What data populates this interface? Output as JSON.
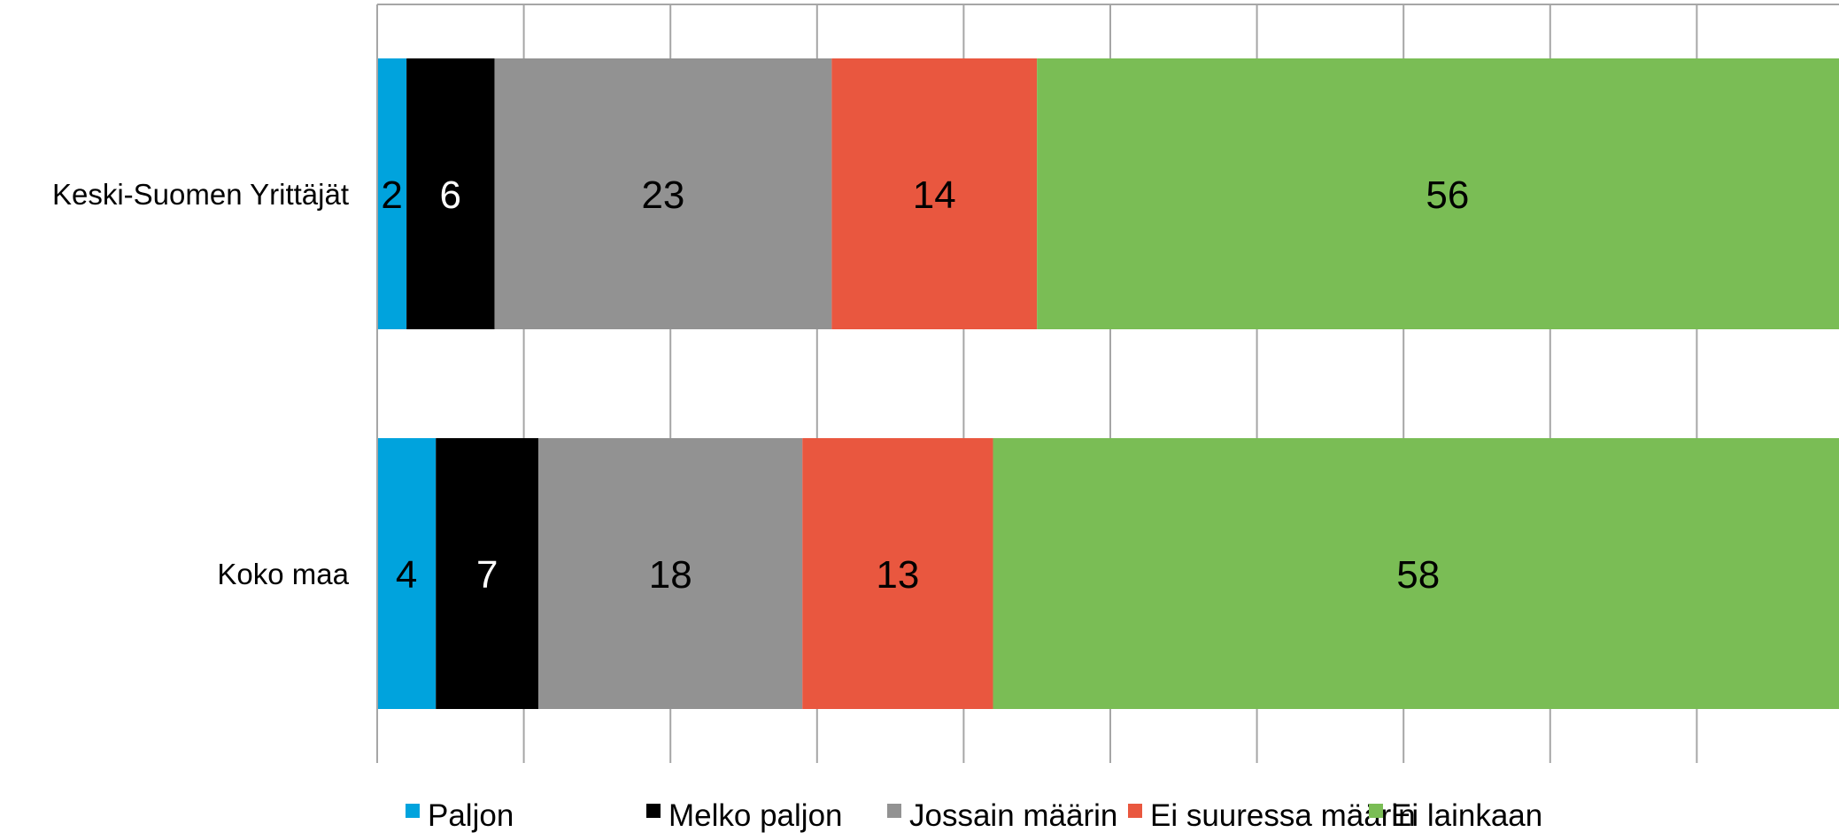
{
  "chart_data": {
    "type": "bar",
    "orientation": "horizontal",
    "stacked": true,
    "categories": [
      "Keski-Suomen Yrittäjät",
      "Koko maa"
    ],
    "series": [
      {
        "name": "Paljon",
        "color": "#00A3DD",
        "label_color": "#000000",
        "values": [
          2,
          4
        ]
      },
      {
        "name": "Melko paljon",
        "color": "#000000",
        "label_color": "#FFFFFF",
        "values": [
          6,
          7
        ]
      },
      {
        "name": "Jossain määrin",
        "color": "#929292",
        "label_color": "#000000",
        "values": [
          23,
          18
        ]
      },
      {
        "name": "Ei suuressa määrin",
        "color": "#E9573F",
        "label_color": "#000000",
        "values": [
          14,
          13
        ]
      },
      {
        "name": "Ei lainkaan",
        "color": "#7ABD55",
        "label_color": "#000000",
        "values": [
          56,
          58
        ]
      }
    ],
    "xlim": [
      0,
      100
    ],
    "grid": true,
    "legend_position": "bottom",
    "title": "",
    "xlabel": "",
    "ylabel": ""
  }
}
